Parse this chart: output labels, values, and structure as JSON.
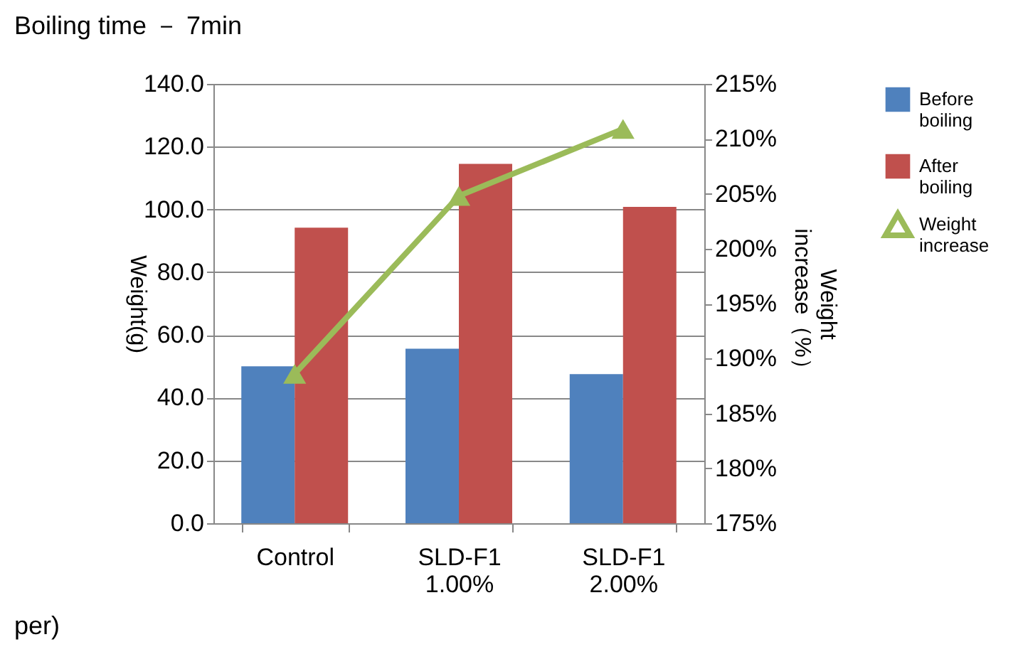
{
  "chart_data": {
    "type": "bar",
    "title": "Boiling time － 7min",
    "categories": [
      "Control",
      "SLD-F1 1.00%",
      "SLD-F1 2.00%"
    ],
    "ylabel": "Weight(g)",
    "y2label": "Weight increase（%）",
    "series": [
      {
        "name": "Before boiling",
        "color": "#4f81bd",
        "values": [
          50,
          55.6,
          47.5
        ]
      },
      {
        "name": "After boiling",
        "color": "#c0504d",
        "values": [
          94.2,
          114.5,
          100.8
        ]
      },
      {
        "name": "Weight increase",
        "color": "#9bbb59",
        "type": "line",
        "axis": "y2",
        "marker": "triangle",
        "values": [
          188.6,
          204.8,
          210.9
        ]
      }
    ],
    "ylim": [
      0,
      140
    ],
    "yticks": [
      {
        "value": 0,
        "label": "0.0"
      },
      {
        "value": 20,
        "label": "20.0"
      },
      {
        "value": 40,
        "label": "40.0"
      },
      {
        "value": 60,
        "label": "60.0"
      },
      {
        "value": 80,
        "label": "80.0"
      },
      {
        "value": 100,
        "label": "100.0"
      },
      {
        "value": 120,
        "label": "120.0"
      },
      {
        "value": 140,
        "label": "140.0"
      }
    ],
    "y2lim": [
      175,
      215
    ],
    "y2ticks": [
      {
        "value": 175,
        "label": "175%"
      },
      {
        "value": 180,
        "label": "180%"
      },
      {
        "value": 185,
        "label": "185%"
      },
      {
        "value": 190,
        "label": "190%"
      },
      {
        "value": 195,
        "label": "195%"
      },
      {
        "value": 200,
        "label": "200%"
      },
      {
        "value": 205,
        "label": "205%"
      },
      {
        "value": 210,
        "label": "210%"
      },
      {
        "value": 215,
        "label": "215%"
      }
    ],
    "grid": "y",
    "legend": "right",
    "annotations": [
      "per)"
    ]
  }
}
